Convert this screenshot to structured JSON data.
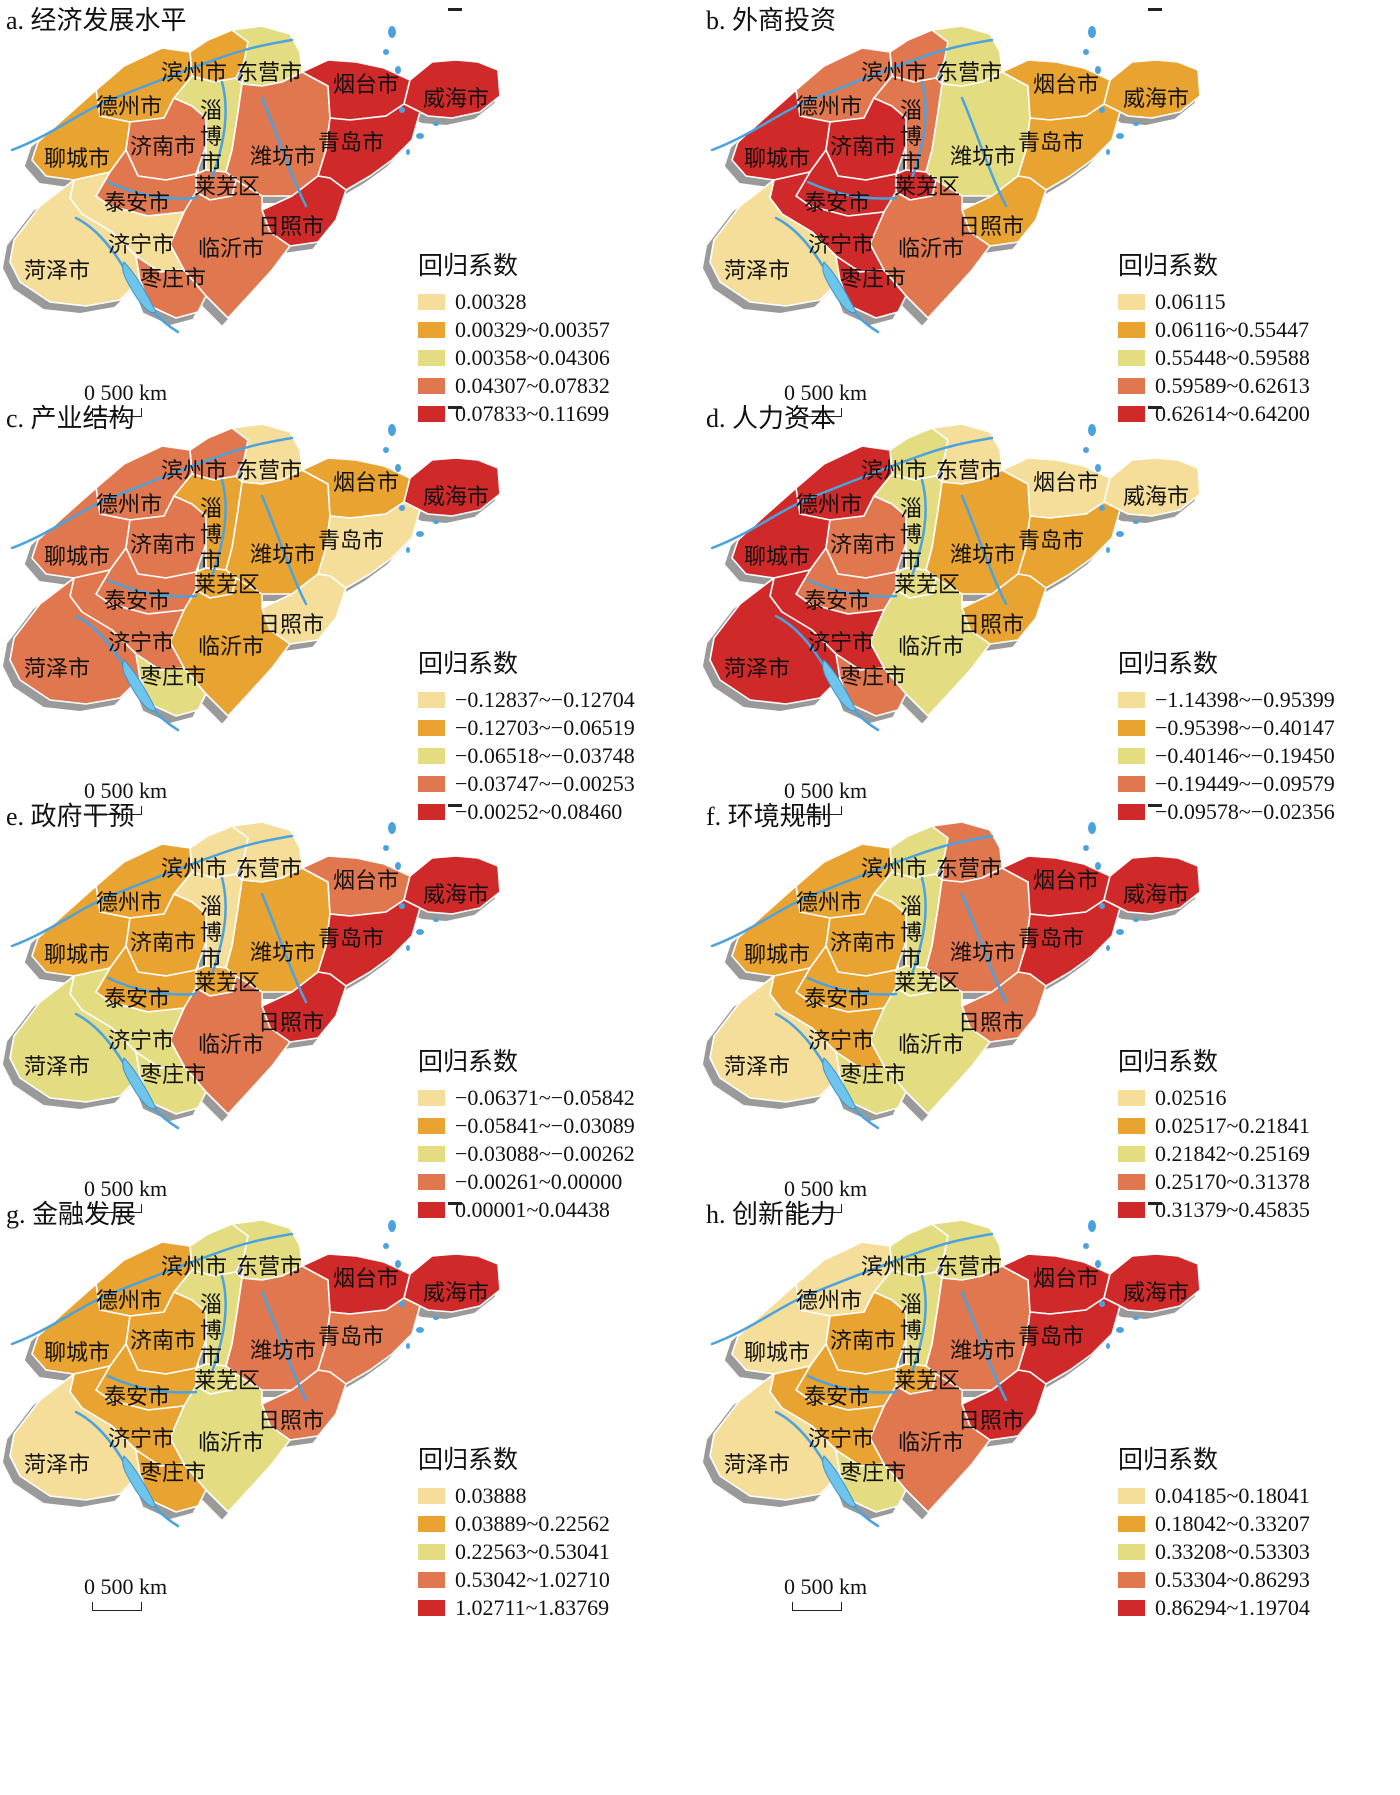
{
  "legend_title": "回归系数",
  "scale_label": "0  500 km",
  "colors": [
    "#f5de9a",
    "#e8a330",
    "#e3dc80",
    "#e0774f",
    "#d02929"
  ],
  "panels": [
    {
      "title": "a. 经济发展水平",
      "legend": [
        "0.00328",
        "0.00329~0.00357",
        "0.00358~0.04306",
        "0.04307~0.07832",
        "0.07833~0.11699"
      ],
      "classes": {
        "heze": 0,
        "liaocheng": 1,
        "dezhou": 1,
        "binzhou": 1,
        "dongying": 2,
        "jinan": 3,
        "zibo": 2,
        "laiwu": 3,
        "taian": 3,
        "jining": 0,
        "zaozhuang": 3,
        "linyi": 3,
        "weifang": 3,
        "rizhao": 4,
        "qingdao": 4,
        "yantai": 4,
        "weihai": 4
      }
    },
    {
      "title": "b. 外商投资",
      "legend": [
        "0.06115",
        "0.06116~0.55447",
        "0.55448~0.59588",
        "0.59589~0.62613",
        "0.62614~0.64200"
      ],
      "classes": {
        "heze": 0,
        "liaocheng": 4,
        "dezhou": 3,
        "binzhou": 3,
        "dongying": 2,
        "jinan": 4,
        "zibo": 3,
        "laiwu": 4,
        "taian": 4,
        "jining": 4,
        "zaozhuang": 4,
        "linyi": 3,
        "weifang": 2,
        "rizhao": 1,
        "qingdao": 1,
        "yantai": 1,
        "weihai": 1
      }
    },
    {
      "title": "c. 产业结构",
      "legend": [
        "−0.12837~−0.12704",
        "−0.12703~−0.06519",
        "−0.06518~−0.03748",
        "−0.03747~−0.00253",
        "−0.00252~0.08460"
      ],
      "classes": {
        "heze": 3,
        "liaocheng": 3,
        "dezhou": 3,
        "binzhou": 3,
        "dongying": 0,
        "jinan": 3,
        "zibo": 1,
        "laiwu": 1,
        "taian": 3,
        "jining": 3,
        "zaozhuang": 2,
        "linyi": 1,
        "weifang": 1,
        "rizhao": 0,
        "qingdao": 0,
        "yantai": 1,
        "weihai": 4
      }
    },
    {
      "title": "d. 人力资本",
      "legend": [
        "−1.14398~−0.95399",
        "−0.95398~−0.40147",
        "−0.40146~−0.19450",
        "−0.19449~−0.09579",
        "−0.09578~−0.02356"
      ],
      "classes": {
        "heze": 4,
        "liaocheng": 4,
        "dezhou": 4,
        "binzhou": 2,
        "dongying": 0,
        "jinan": 3,
        "zibo": 2,
        "laiwu": 2,
        "taian": 3,
        "jining": 4,
        "zaozhuang": 3,
        "linyi": 2,
        "weifang": 1,
        "rizhao": 1,
        "qingdao": 1,
        "yantai": 0,
        "weihai": 0
      }
    },
    {
      "title": "e. 政府干预",
      "legend": [
        "−0.06371~−0.05842",
        "−0.05841~−0.03089",
        "−0.03088~−0.00262",
        "−0.00261~0.00000",
        "0.00001~0.04438"
      ],
      "classes": {
        "heze": 2,
        "liaocheng": 1,
        "dezhou": 1,
        "binzhou": 0,
        "dongying": 0,
        "jinan": 1,
        "zibo": 0,
        "laiwu": 1,
        "taian": 1,
        "jining": 2,
        "zaozhuang": 2,
        "linyi": 3,
        "weifang": 1,
        "rizhao": 4,
        "qingdao": 4,
        "yantai": 3,
        "weihai": 4
      }
    },
    {
      "title": "f. 环境规制",
      "legend": [
        "0.02516",
        "0.02517~0.21841",
        "0.21842~0.25169",
        "0.25170~0.31378",
        "0.31379~0.45835"
      ],
      "classes": {
        "heze": 0,
        "liaocheng": 1,
        "dezhou": 1,
        "binzhou": 2,
        "dongying": 3,
        "jinan": 1,
        "zibo": 2,
        "laiwu": 2,
        "taian": 1,
        "jining": 1,
        "zaozhuang": 2,
        "linyi": 2,
        "weifang": 3,
        "rizhao": 3,
        "qingdao": 4,
        "yantai": 4,
        "weihai": 4
      }
    },
    {
      "title": "g. 金融发展",
      "legend": [
        "0.03888",
        "0.03889~0.22562",
        "0.22563~0.53041",
        "0.53042~1.02710",
        "1.02711~1.83769"
      ],
      "classes": {
        "heze": 0,
        "liaocheng": 1,
        "dezhou": 1,
        "binzhou": 2,
        "dongying": 2,
        "jinan": 1,
        "zibo": 2,
        "laiwu": 2,
        "taian": 1,
        "jining": 1,
        "zaozhuang": 1,
        "linyi": 2,
        "weifang": 3,
        "rizhao": 3,
        "qingdao": 3,
        "yantai": 4,
        "weihai": 4
      }
    },
    {
      "title": "h. 创新能力",
      "legend": [
        "0.04185~0.18041",
        "0.18042~0.33207",
        "0.33208~0.53303",
        "0.53304~0.86293",
        "0.86294~1.19704"
      ],
      "classes": {
        "heze": 0,
        "liaocheng": 0,
        "dezhou": 0,
        "binzhou": 2,
        "dongying": 2,
        "jinan": 1,
        "zibo": 2,
        "laiwu": 1,
        "taian": 1,
        "jining": 1,
        "zaozhuang": 2,
        "linyi": 3,
        "weifang": 3,
        "rizhao": 4,
        "qingdao": 4,
        "yantai": 4,
        "weihai": 4
      }
    }
  ],
  "cities": [
    {
      "id": "binzhou",
      "label": "滨州市"
    },
    {
      "id": "dongying",
      "label": "东营市"
    },
    {
      "id": "yantai",
      "label": "烟台市"
    },
    {
      "id": "weihai",
      "label": "威海市"
    },
    {
      "id": "dezhou",
      "label": "德州市"
    },
    {
      "id": "zibo",
      "label": "淄博市"
    },
    {
      "id": "liaocheng",
      "label": "聊城市"
    },
    {
      "id": "jinan",
      "label": "济南市"
    },
    {
      "id": "weifang",
      "label": "潍坊市"
    },
    {
      "id": "qingdao",
      "label": "青岛市"
    },
    {
      "id": "laiwu",
      "label": "莱芜区"
    },
    {
      "id": "taian",
      "label": "泰安市"
    },
    {
      "id": "rizhao",
      "label": "日照市"
    },
    {
      "id": "jining",
      "label": "济宁市"
    },
    {
      "id": "linyi",
      "label": "临沂市"
    },
    {
      "id": "heze",
      "label": "菏泽市"
    },
    {
      "id": "zaozhuang",
      "label": "枣庄市"
    }
  ]
}
